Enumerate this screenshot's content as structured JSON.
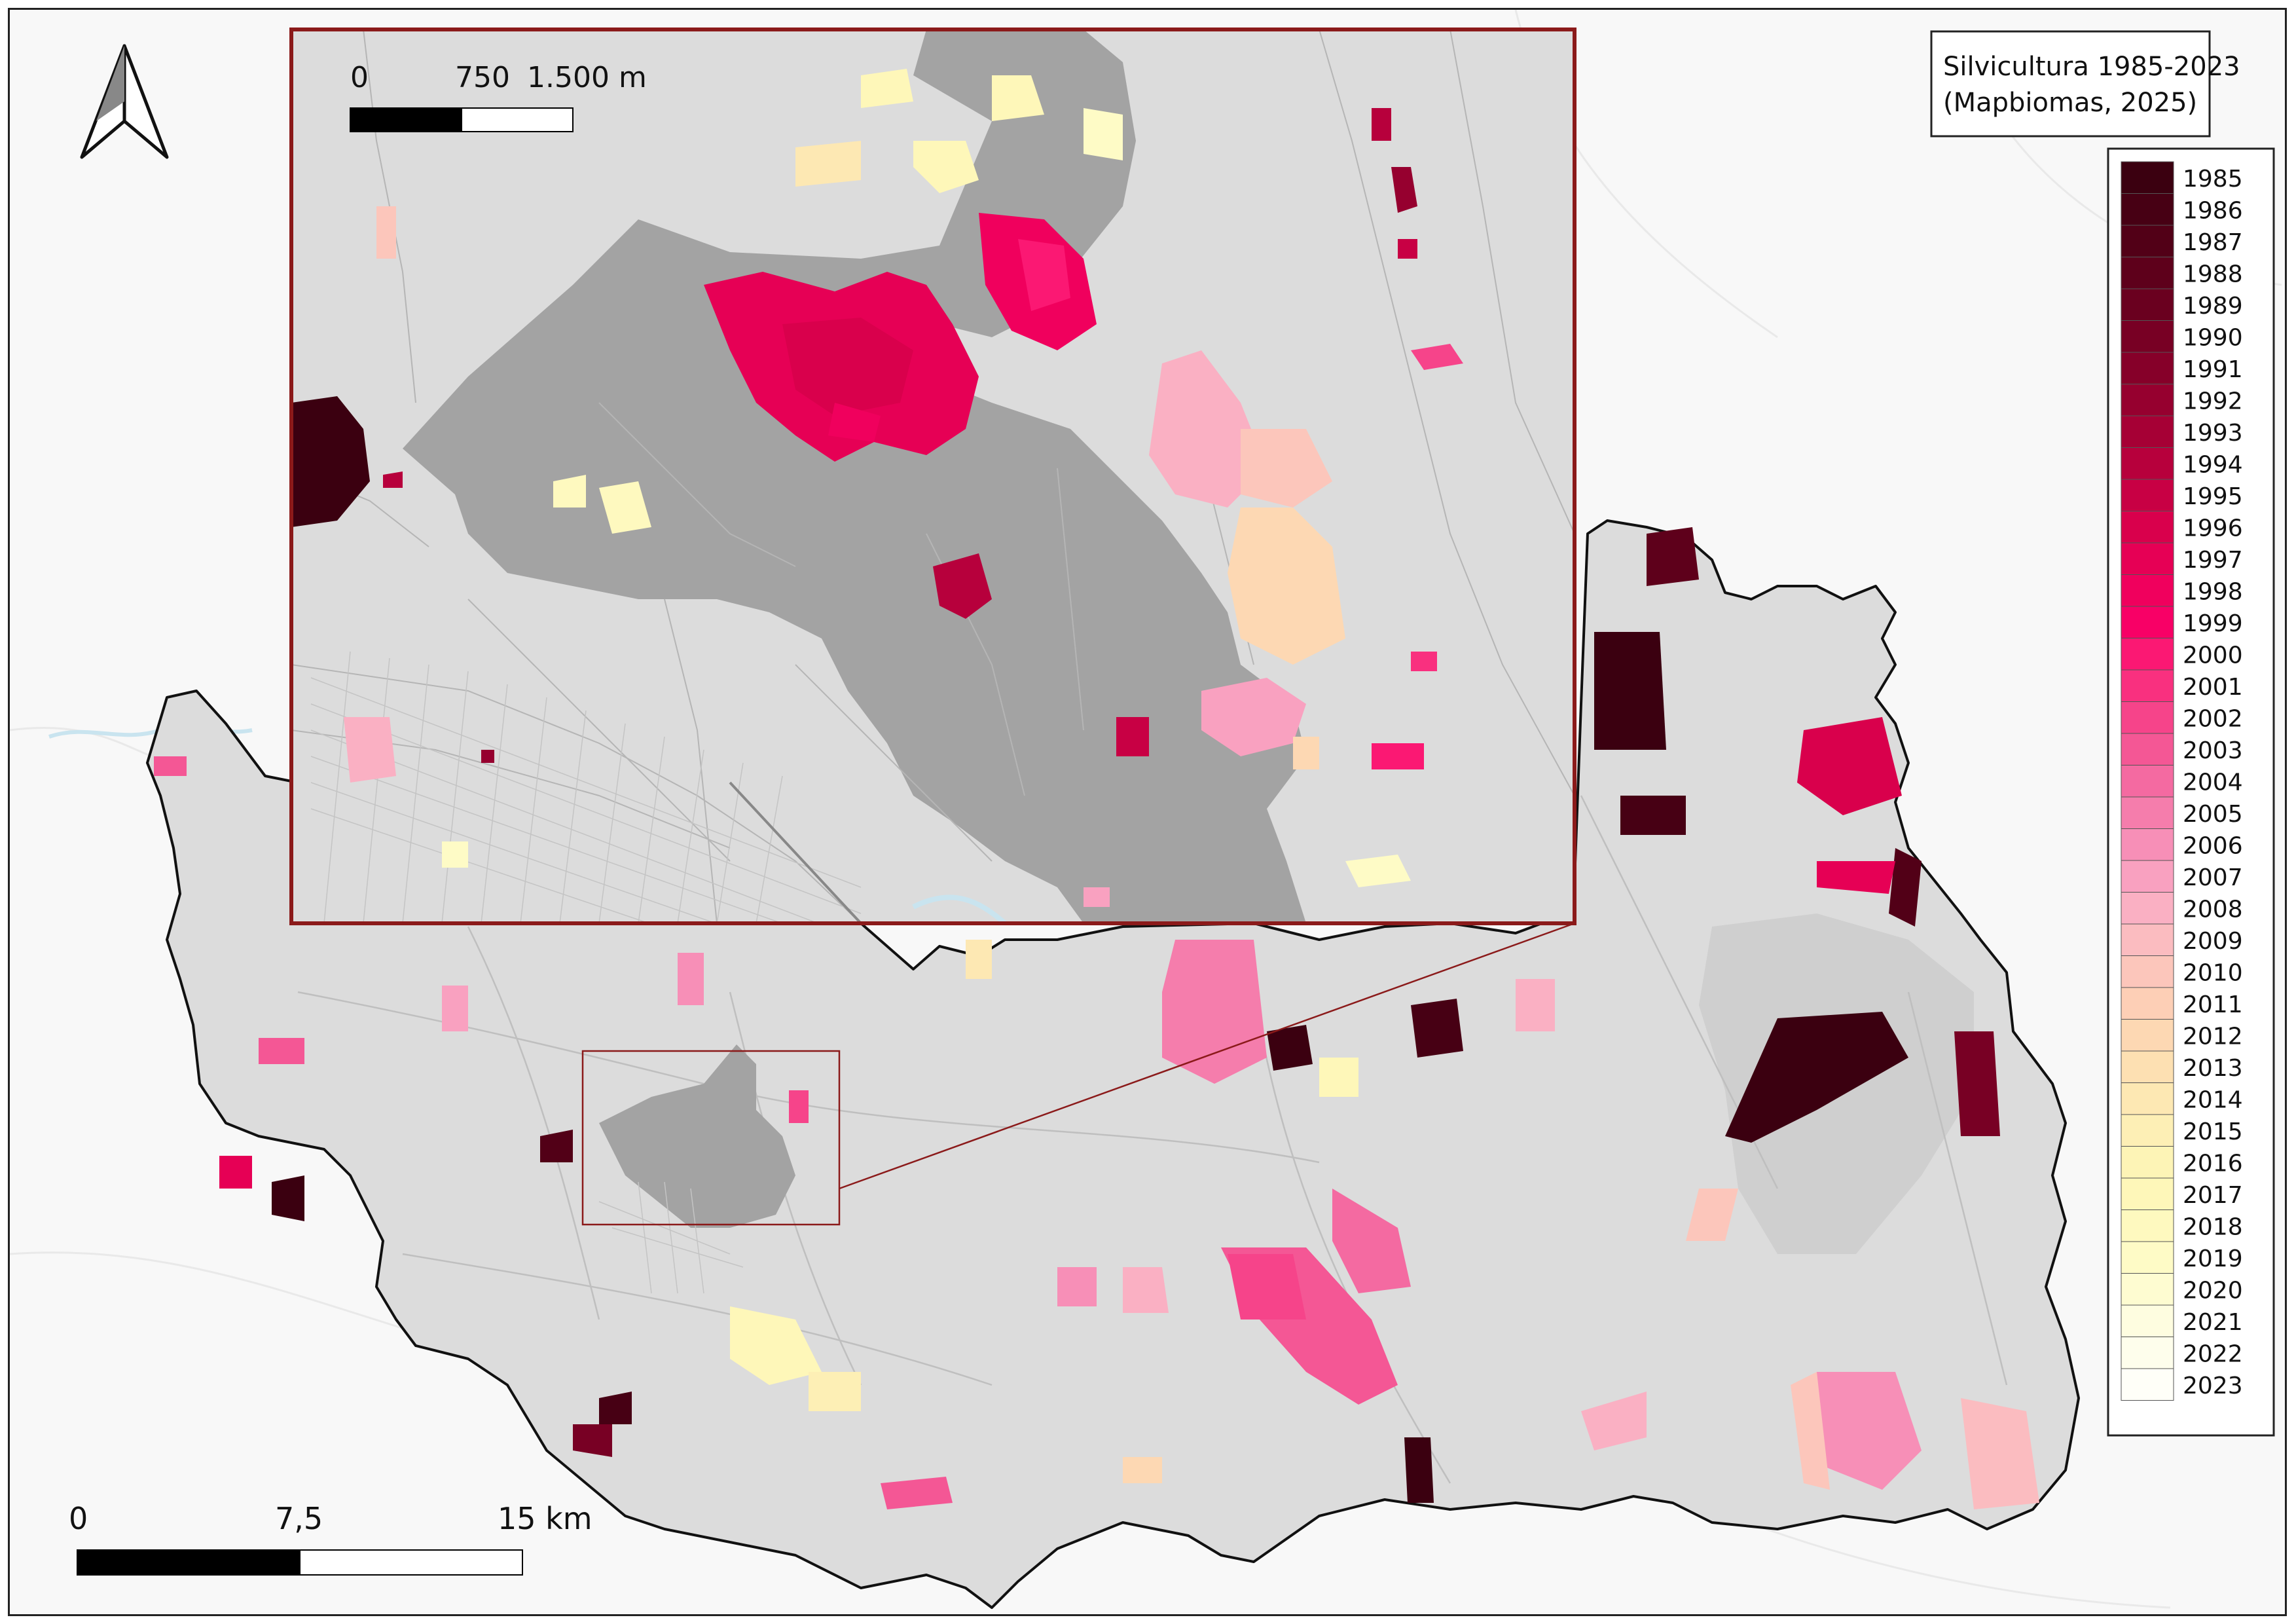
{
  "map": {
    "title_line1": "Silvicultura 1985-2023",
    "title_line2": "(Mapbiomas, 2025)",
    "north_arrow": "north-arrow-icon"
  },
  "scalebar_main": {
    "labels": [
      "0",
      "7,5",
      "15 km"
    ]
  },
  "scalebar_inset": {
    "labels": [
      "0",
      "750",
      "1.500 m"
    ]
  },
  "legend": {
    "items": [
      {
        "year": "1985",
        "color": "#3b0010"
      },
      {
        "year": "1986",
        "color": "#470014"
      },
      {
        "year": "1987",
        "color": "#520017"
      },
      {
        "year": "1988",
        "color": "#5e001b"
      },
      {
        "year": "1989",
        "color": "#6a001f"
      },
      {
        "year": "1990",
        "color": "#780024"
      },
      {
        "year": "1991",
        "color": "#860029"
      },
      {
        "year": "1992",
        "color": "#96002f"
      },
      {
        "year": "1993",
        "color": "#a60035"
      },
      {
        "year": "1994",
        "color": "#b7003c"
      },
      {
        "year": "1995",
        "color": "#c80044"
      },
      {
        "year": "1996",
        "color": "#d9004c"
      },
      {
        "year": "1997",
        "color": "#e60055"
      },
      {
        "year": "1998",
        "color": "#f0005d"
      },
      {
        "year": "1999",
        "color": "#f80066"
      },
      {
        "year": "2000",
        "color": "#fb1873"
      },
      {
        "year": "2001",
        "color": "#f9307f"
      },
      {
        "year": "2002",
        "color": "#f6448a"
      },
      {
        "year": "2003",
        "color": "#f45795"
      },
      {
        "year": "2004",
        "color": "#f46aa1"
      },
      {
        "year": "2005",
        "color": "#f57dac"
      },
      {
        "year": "2006",
        "color": "#f78fb7"
      },
      {
        "year": "2007",
        "color": "#f9a1c0"
      },
      {
        "year": "2008",
        "color": "#fab0c3"
      },
      {
        "year": "2009",
        "color": "#fbbcc0"
      },
      {
        "year": "2010",
        "color": "#fcc6bb"
      },
      {
        "year": "2011",
        "color": "#fdcfb6"
      },
      {
        "year": "2012",
        "color": "#fdd8b3"
      },
      {
        "year": "2013",
        "color": "#fde0b2"
      },
      {
        "year": "2014",
        "color": "#fde8b3"
      },
      {
        "year": "2015",
        "color": "#fdefb5"
      },
      {
        "year": "2016",
        "color": "#fdf4b6"
      },
      {
        "year": "2017",
        "color": "#fef7b9"
      },
      {
        "year": "2018",
        "color": "#fef9bf"
      },
      {
        "year": "2019",
        "color": "#fefbc6"
      },
      {
        "year": "2020",
        "color": "#fefcd1"
      },
      {
        "year": "2021",
        "color": "#fefde0"
      },
      {
        "year": "2022",
        "color": "#fefeec"
      },
      {
        "year": "2023",
        "color": "#fffff8"
      }
    ]
  },
  "colors": {
    "municipality_fill": "#dcdcdc",
    "urban_area_fill": "#a3a3a3",
    "inset_border": "#8b1a1a",
    "background": "#f8f8f8"
  }
}
